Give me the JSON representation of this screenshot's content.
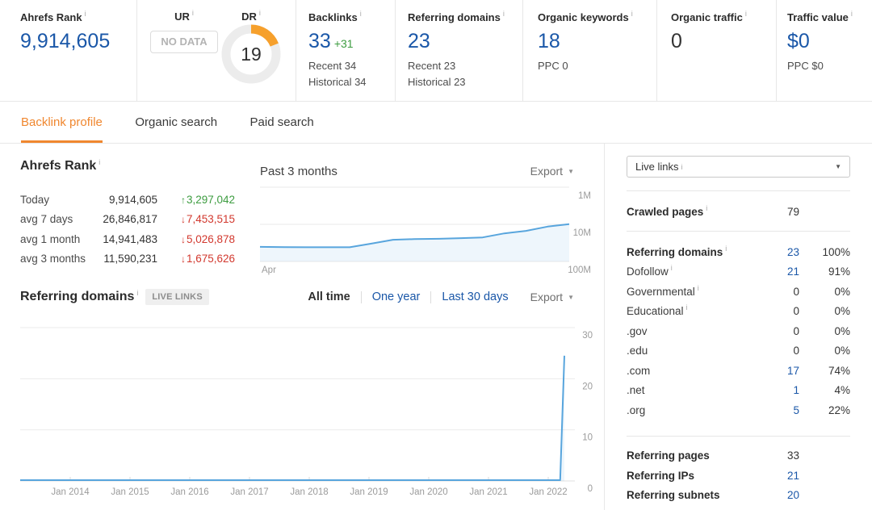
{
  "colors": {
    "blue": "#1a57a8",
    "orange": "#f0872f",
    "dr-orange": "#f6a02c",
    "green": "#3d9c40",
    "red": "#d2382e",
    "dark": "#333333",
    "border": "#e7e7e7",
    "chartline": "#58a5dd",
    "chartfill": "rgba(88,165,221,0.10)"
  },
  "icons": {
    "arrow_up": "↑",
    "arrow_down": "↓",
    "caret_down": "▼",
    "info": "i"
  },
  "topbar": {
    "ahrefs_rank": {
      "label": "Ahrefs Rank",
      "value": "9,914,605"
    },
    "ur": {
      "label": "UR",
      "no_data": "NO DATA"
    },
    "dr": {
      "label": "DR",
      "value": "19",
      "percent": 19
    },
    "backlinks": {
      "label": "Backlinks",
      "value": "33",
      "delta": "+31",
      "recent": "Recent 34",
      "historical": "Historical 34"
    },
    "referring_domains": {
      "label": "Referring domains",
      "value": "23",
      "recent": "Recent 23",
      "historical": "Historical 23"
    },
    "organic_keywords": {
      "label": "Organic keywords",
      "value": "18",
      "ppc": "PPC 0"
    },
    "organic_traffic": {
      "label": "Organic traffic",
      "value": "0"
    },
    "traffic_value": {
      "label": "Traffic value",
      "value": "$0",
      "ppc": "PPC $0"
    }
  },
  "tabs": [
    {
      "label": "Backlink profile",
      "active": true
    },
    {
      "label": "Organic search",
      "active": false
    },
    {
      "label": "Paid search",
      "active": false
    }
  ],
  "rank_section": {
    "title": "Ahrefs Rank",
    "rows": [
      {
        "label": "Today",
        "value": "9,914,605",
        "change": "3,297,042",
        "direction": "up"
      },
      {
        "label": "avg 7 days",
        "value": "26,846,817",
        "change": "7,453,515",
        "direction": "down"
      },
      {
        "label": "avg 1 month",
        "value": "14,941,483",
        "change": "5,026,878",
        "direction": "down"
      },
      {
        "label": "avg 3 months",
        "value": "11,590,231",
        "change": "1,675,626",
        "direction": "down"
      }
    ]
  },
  "rank_chart": {
    "title": "Past 3 months",
    "export_label": "Export"
  },
  "domains_section": {
    "title": "Referring domains",
    "badge": "LIVE LINKS",
    "filters": [
      {
        "label": "All time",
        "active": true
      },
      {
        "label": "One year",
        "active": false
      },
      {
        "label": "Last 30 days",
        "active": false
      }
    ],
    "export_label": "Export"
  },
  "sidebar": {
    "dropdown": {
      "value": "Live links"
    },
    "crawled_pages": {
      "label": "Crawled pages",
      "value": "79"
    },
    "rows": [
      {
        "label": "Referring domains",
        "value": "23",
        "pct": "100%",
        "bold": true,
        "info": true,
        "link": true
      },
      {
        "label": "Dofollow",
        "value": "21",
        "pct": "91%",
        "bold": false,
        "info": true,
        "link": true
      },
      {
        "label": "Governmental",
        "value": "0",
        "pct": "0%",
        "bold": false,
        "info": true,
        "link": false
      },
      {
        "label": "Educational",
        "value": "0",
        "pct": "0%",
        "bold": false,
        "info": true,
        "link": false
      },
      {
        "label": ".gov",
        "value": "0",
        "pct": "0%",
        "bold": false,
        "info": false,
        "link": false
      },
      {
        "label": ".edu",
        "value": "0",
        "pct": "0%",
        "bold": false,
        "info": false,
        "link": false
      },
      {
        "label": ".com",
        "value": "17",
        "pct": "74%",
        "bold": false,
        "info": false,
        "link": true
      },
      {
        "label": ".net",
        "value": "1",
        "pct": "4%",
        "bold": false,
        "info": false,
        "link": true
      },
      {
        "label": ".org",
        "value": "5",
        "pct": "22%",
        "bold": false,
        "info": false,
        "link": true
      }
    ],
    "bottom_rows": [
      {
        "label": "Referring pages",
        "value": "33",
        "link": false
      },
      {
        "label": "Referring IPs",
        "value": "21",
        "link": true
      },
      {
        "label": "Referring subnets",
        "value": "20",
        "link": true
      }
    ]
  },
  "chart_data": [
    {
      "type": "area",
      "title": "Past 3 months",
      "y_scale": "log10_inverted_rank",
      "y_ticks": [
        "1M",
        "10M",
        "100M"
      ],
      "y_range": [
        1000000,
        100000000
      ],
      "x_first_label": "Apr",
      "legend": false,
      "series": [
        {
          "name": "Ahrefs Rank",
          "points": [
            [
              0,
              40500000
            ],
            [
              0.08,
              41000000
            ],
            [
              0.2,
              41500000
            ],
            [
              0.29,
              41500000
            ],
            [
              0.36,
              33000000
            ],
            [
              0.43,
              26000000
            ],
            [
              0.5,
              25000000
            ],
            [
              0.58,
              24500000
            ],
            [
              0.65,
              23500000
            ],
            [
              0.72,
              22500000
            ],
            [
              0.79,
              17500000
            ],
            [
              0.86,
              15000000
            ],
            [
              0.93,
              11500000
            ],
            [
              1,
              9914605
            ]
          ]
        }
      ]
    },
    {
      "type": "line",
      "title": "Referring domains",
      "y_range": [
        0,
        30
      ],
      "y_ticks": [
        30,
        20,
        10,
        0
      ],
      "grid": true,
      "legend": false,
      "x_ticks": [
        {
          "year": 2014,
          "label": "Jan 2014"
        },
        {
          "year": 2015,
          "label": "Jan 2015"
        },
        {
          "year": 2016,
          "label": "Jan 2016"
        },
        {
          "year": 2017,
          "label": "Jan 2017"
        },
        {
          "year": 2018,
          "label": "Jan 2018"
        },
        {
          "year": 2019,
          "label": "Jan 2019"
        },
        {
          "year": 2020,
          "label": "Jan 2020"
        },
        {
          "year": 2021,
          "label": "Jan 2021"
        },
        {
          "year": 2022,
          "label": "Jan 2022"
        }
      ],
      "points": [
        [
          2013.16,
          0
        ],
        [
          2022.2,
          0
        ],
        [
          2022.27,
          24.5
        ]
      ]
    }
  ]
}
